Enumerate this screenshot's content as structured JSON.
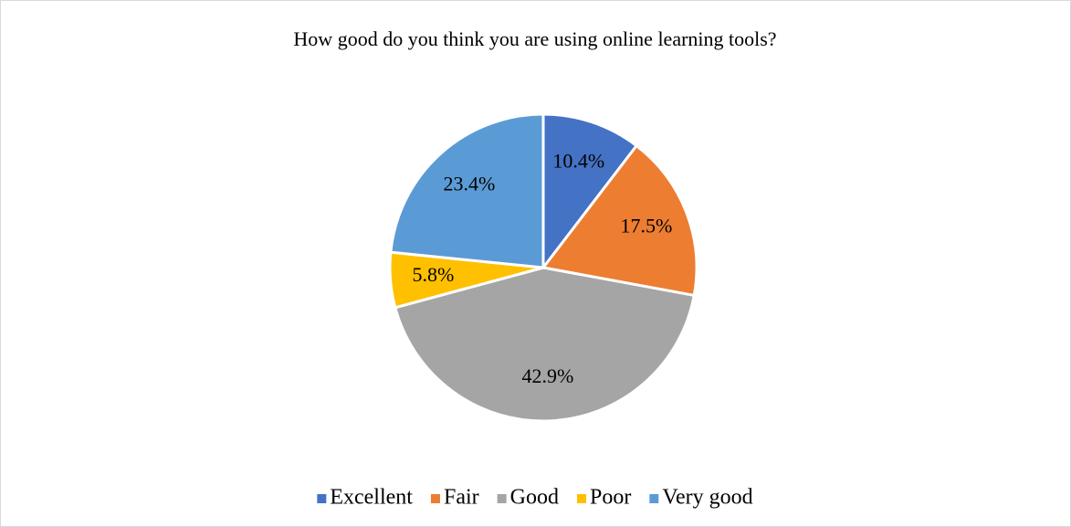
{
  "chart_data": {
    "type": "pie",
    "title": "How good do you think you are using online learning tools?",
    "categories": [
      "Excellent",
      "Fair",
      "Good",
      "Poor",
      "Very good"
    ],
    "values": [
      10.4,
      17.5,
      42.9,
      5.8,
      23.4
    ],
    "value_labels": [
      "10.4%",
      "17.5%",
      "42.9%",
      "5.8%",
      "23.4%"
    ],
    "colors": [
      "#4472c4",
      "#ed7d31",
      "#a5a5a5",
      "#ffc000",
      "#5b9bd5"
    ],
    "legend": "bottom"
  }
}
